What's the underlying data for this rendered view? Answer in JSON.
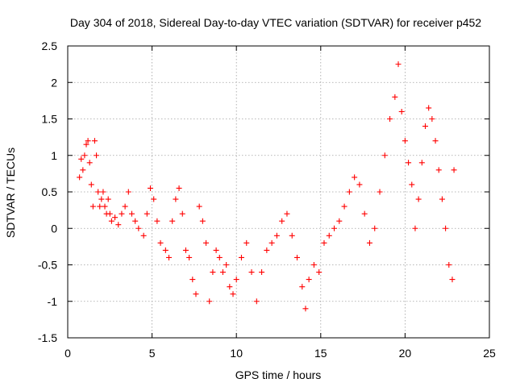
{
  "chart_data": {
    "type": "scatter",
    "title": "Day 304 of 2018, Sidereal Day-to-day VTEC variation (SDTVAR) for receiver p452",
    "xlabel": "GPS time / hours",
    "ylabel": "SDTVAR / TECUs",
    "xlim": [
      0,
      25
    ],
    "ylim": [
      -1.5,
      2.5
    ],
    "xticks": [
      0,
      5,
      10,
      15,
      20,
      25
    ],
    "yticks": [
      -1.5,
      -1,
      -0.5,
      0,
      0.5,
      1,
      1.5,
      2,
      2.5
    ],
    "xtick_labels": [
      "0",
      "5",
      "10",
      "15",
      "20",
      "25"
    ],
    "ytick_labels": [
      "-1.5",
      "-1",
      "-0.5",
      "0",
      "0.5",
      "1",
      "1.5",
      "2",
      "2.5"
    ],
    "grid": true,
    "marker": "+",
    "marker_color": "#ff0000",
    "series": [
      {
        "name": "SDTVAR",
        "points": [
          [
            0.7,
            0.7
          ],
          [
            0.8,
            0.95
          ],
          [
            0.9,
            0.8
          ],
          [
            1.0,
            1.0
          ],
          [
            1.1,
            1.15
          ],
          [
            1.2,
            1.2
          ],
          [
            1.3,
            0.9
          ],
          [
            1.4,
            0.6
          ],
          [
            1.5,
            0.3
          ],
          [
            1.6,
            1.2
          ],
          [
            1.7,
            1.0
          ],
          [
            1.8,
            0.5
          ],
          [
            1.9,
            0.3
          ],
          [
            2.0,
            0.4
          ],
          [
            2.1,
            0.5
          ],
          [
            2.2,
            0.3
          ],
          [
            2.3,
            0.2
          ],
          [
            2.4,
            0.4
          ],
          [
            2.5,
            0.2
          ],
          [
            2.6,
            0.1
          ],
          [
            2.8,
            0.15
          ],
          [
            3.0,
            0.05
          ],
          [
            3.2,
            0.2
          ],
          [
            3.4,
            0.3
          ],
          [
            3.6,
            0.5
          ],
          [
            3.8,
            0.2
          ],
          [
            4.0,
            0.1
          ],
          [
            4.2,
            0.0
          ],
          [
            4.5,
            -0.1
          ],
          [
            4.7,
            0.2
          ],
          [
            4.9,
            0.55
          ],
          [
            5.1,
            0.4
          ],
          [
            5.3,
            0.1
          ],
          [
            5.5,
            -0.2
          ],
          [
            5.8,
            -0.3
          ],
          [
            6.0,
            -0.4
          ],
          [
            6.2,
            0.1
          ],
          [
            6.4,
            0.4
          ],
          [
            6.6,
            0.55
          ],
          [
            6.8,
            0.2
          ],
          [
            7.0,
            -0.3
          ],
          [
            7.2,
            -0.4
          ],
          [
            7.4,
            -0.7
          ],
          [
            7.6,
            -0.9
          ],
          [
            7.8,
            0.3
          ],
          [
            8.0,
            0.1
          ],
          [
            8.2,
            -0.2
          ],
          [
            8.4,
            -1.0
          ],
          [
            8.6,
            -0.6
          ],
          [
            8.8,
            -0.3
          ],
          [
            9.0,
            -0.4
          ],
          [
            9.2,
            -0.6
          ],
          [
            9.4,
            -0.5
          ],
          [
            9.6,
            -0.8
          ],
          [
            9.8,
            -0.9
          ],
          [
            10.0,
            -0.7
          ],
          [
            10.3,
            -0.4
          ],
          [
            10.6,
            -0.2
          ],
          [
            10.9,
            -0.6
          ],
          [
            11.2,
            -1.0
          ],
          [
            11.5,
            -0.6
          ],
          [
            11.8,
            -0.3
          ],
          [
            12.1,
            -0.2
          ],
          [
            12.4,
            -0.1
          ],
          [
            12.7,
            0.1
          ],
          [
            13.0,
            0.2
          ],
          [
            13.3,
            -0.1
          ],
          [
            13.6,
            -0.4
          ],
          [
            13.9,
            -0.8
          ],
          [
            14.1,
            -1.1
          ],
          [
            14.3,
            -0.7
          ],
          [
            14.6,
            -0.5
          ],
          [
            14.9,
            -0.6
          ],
          [
            15.2,
            -0.2
          ],
          [
            15.5,
            -0.1
          ],
          [
            15.8,
            0.0
          ],
          [
            16.1,
            0.1
          ],
          [
            16.4,
            0.3
          ],
          [
            16.7,
            0.5
          ],
          [
            17.0,
            0.7
          ],
          [
            17.3,
            0.6
          ],
          [
            17.6,
            0.2
          ],
          [
            17.9,
            -0.2
          ],
          [
            18.2,
            0.0
          ],
          [
            18.5,
            0.5
          ],
          [
            18.8,
            1.0
          ],
          [
            19.1,
            1.5
          ],
          [
            19.4,
            1.8
          ],
          [
            19.6,
            2.25
          ],
          [
            19.8,
            1.6
          ],
          [
            20.0,
            1.2
          ],
          [
            20.2,
            0.9
          ],
          [
            20.4,
            0.6
          ],
          [
            20.6,
            -0.0
          ],
          [
            20.8,
            0.4
          ],
          [
            21.0,
            0.9
          ],
          [
            21.2,
            1.4
          ],
          [
            21.4,
            1.65
          ],
          [
            21.6,
            1.5
          ],
          [
            21.8,
            1.2
          ],
          [
            22.0,
            0.8
          ],
          [
            22.2,
            0.4
          ],
          [
            22.4,
            0.0
          ],
          [
            22.6,
            -0.5
          ],
          [
            22.8,
            -0.7
          ],
          [
            22.9,
            0.8
          ]
        ]
      }
    ]
  }
}
